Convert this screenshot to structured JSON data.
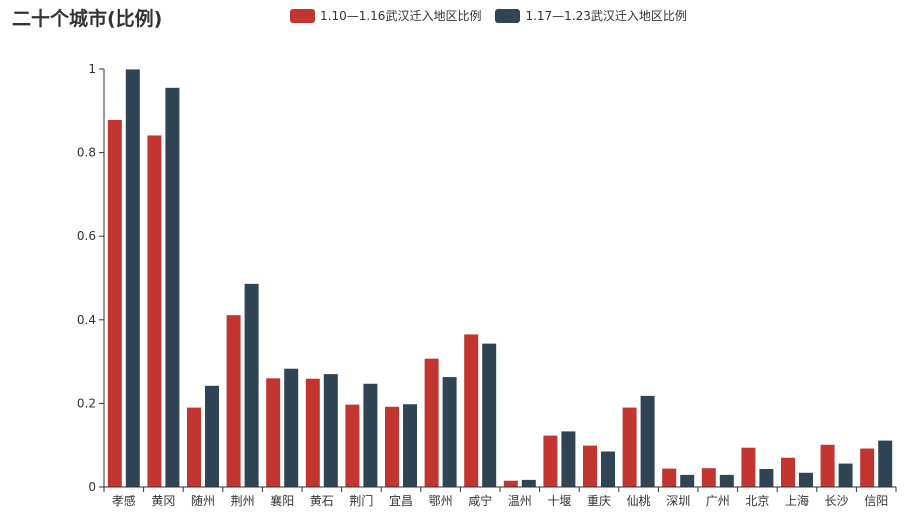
{
  "colors": {
    "series1": "#c23531",
    "series2": "#2f4554",
    "axis": "#333333",
    "tick_text": "#333333"
  },
  "chart_data": {
    "type": "bar",
    "title": "二十个城市(比例)",
    "legend_position": "top-center",
    "grid": false,
    "ylim": [
      0,
      1
    ],
    "yticks": [
      "0",
      "0.2",
      "0.4",
      "0.6",
      "0.8",
      "1"
    ],
    "categories": [
      "孝感",
      "黄冈",
      "随州",
      "荆州",
      "襄阳",
      "黄石",
      "荆门",
      "宜昌",
      "鄂州",
      "咸宁",
      "温州",
      "十堰",
      "重庆",
      "仙桃",
      "深圳",
      "广州",
      "北京",
      "上海",
      "长沙",
      "信阳"
    ],
    "series": [
      {
        "name": "1.10—1.16武汉迁入地区比例",
        "values": [
          0.878,
          0.841,
          0.19,
          0.411,
          0.26,
          0.259,
          0.197,
          0.192,
          0.307,
          0.365,
          0.015,
          0.123,
          0.099,
          0.19,
          0.044,
          0.045,
          0.094,
          0.07,
          0.101,
          0.092
        ]
      },
      {
        "name": "1.17—1.23武汉迁入地区比例",
        "values": [
          0.999,
          0.955,
          0.242,
          0.486,
          0.283,
          0.27,
          0.247,
          0.198,
          0.263,
          0.343,
          0.017,
          0.133,
          0.085,
          0.218,
          0.029,
          0.029,
          0.043,
          0.034,
          0.056,
          0.111
        ]
      }
    ]
  }
}
